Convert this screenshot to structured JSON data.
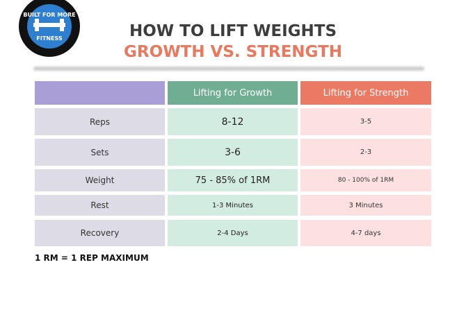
{
  "logo": {
    "top": "BUILT FOR MORE",
    "bottom": "FITNESS"
  },
  "header": {
    "title": "HOW TO LIFT WEIGHTS",
    "subtitle": "GROWTH VS. STRENGTH"
  },
  "table": {
    "columns": [
      "Lifting for Growth",
      "Lifting for Strength"
    ],
    "rows": [
      [
        "Reps",
        "8-12",
        "3-5"
      ],
      [
        "Sets",
        "3-6",
        "2-3"
      ],
      [
        "Weight",
        "75 - 85% of 1RM",
        "80 - 100% of 1RM"
      ],
      [
        "Rest",
        "1-3 Minutes",
        "3 Minutes"
      ],
      [
        "Recovery",
        "2-4 Days",
        "4-7 days"
      ]
    ]
  },
  "footnote": "1 RM = 1 REP MAXIMUM"
}
